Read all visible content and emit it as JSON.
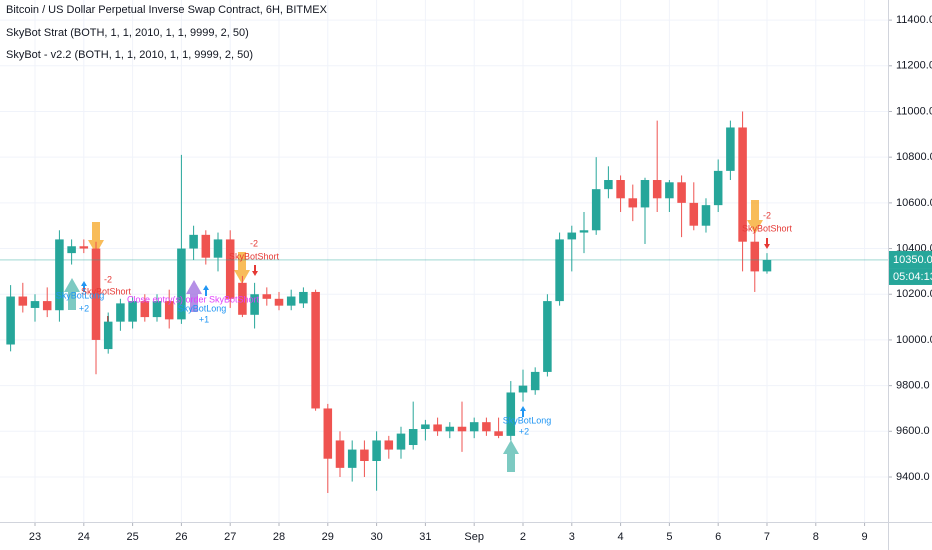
{
  "chart_data": {
    "type": "candlestick",
    "title": "Bitcoin / US Dollar Perpetual Inverse Swap Contract, 6H, BITMEX",
    "subtitles": [
      "SkyBot Strat (BOTH, 1, 1, 2010, 1, 1, 9999, 2, 50)",
      "SkyBot - v2.2 (BOTH, 1, 1, 2010, 1, 1, 9999, 2, 50)"
    ],
    "up_color": "#26a69a",
    "down_color": "#ef5350",
    "open": [
      9980,
      10190,
      10140,
      10170,
      10130,
      10380,
      10410,
      10400,
      9960,
      10080,
      10080,
      10170,
      10100,
      10170,
      10090,
      10400,
      10460,
      10360,
      10440,
      10250,
      10110,
      10200,
      10180,
      10150,
      10160,
      10210,
      9700,
      9560,
      9440,
      9520,
      9470,
      9560,
      9520,
      9540,
      9610,
      9630,
      9600,
      9620,
      9600,
      9640,
      9600,
      9580,
      9770,
      9780,
      9860,
      10170,
      10440,
      10470,
      10480,
      10660,
      10700,
      10620,
      10580,
      10700,
      10620,
      10690,
      10600,
      10500,
      10590,
      10740,
      10930,
      10430,
      10300
    ],
    "high": [
      10240,
      10250,
      10200,
      10230,
      10480,
      10440,
      10440,
      10430,
      10120,
      10180,
      10190,
      10200,
      10200,
      10220,
      10810,
      10500,
      10480,
      10470,
      10480,
      10280,
      10250,
      10230,
      10210,
      10220,
      10230,
      10220,
      9720,
      9600,
      9560,
      9560,
      9600,
      9580,
      9620,
      9730,
      9650,
      9660,
      9640,
      9730,
      9660,
      9660,
      9660,
      9820,
      9870,
      9880,
      10200,
      10470,
      10500,
      10560,
      10800,
      10760,
      10720,
      10680,
      10710,
      10960,
      10700,
      10720,
      10690,
      10620,
      10790,
      10960,
      11000,
      10480,
      10380
    ],
    "low": [
      9950,
      10120,
      10080,
      10100,
      10080,
      10330,
      10380,
      9850,
      9940,
      10040,
      10050,
      10080,
      10080,
      10050,
      10070,
      10350,
      10330,
      10300,
      10140,
      10100,
      10050,
      10150,
      10130,
      10130,
      10140,
      9690,
      9330,
      9400,
      9380,
      9400,
      9340,
      9480,
      9480,
      9520,
      9560,
      9580,
      9570,
      9510,
      9570,
      9580,
      9570,
      9560,
      9730,
      9760,
      9840,
      10150,
      10300,
      10380,
      10460,
      10620,
      10560,
      10520,
      10420,
      10560,
      10560,
      10450,
      10480,
      10470,
      10560,
      10700,
      10300,
      10210,
      10290
    ],
    "close": [
      10190,
      10150,
      10170,
      10130,
      10440,
      10410,
      10400,
      10000,
      10080,
      10160,
      10170,
      10100,
      10170,
      10090,
      10400,
      10460,
      10360,
      10440,
      10180,
      10110,
      10200,
      10180,
      10150,
      10190,
      10210,
      9700,
      9480,
      9440,
      9520,
      9470,
      9560,
      9520,
      9590,
      9610,
      9630,
      9600,
      9620,
      9600,
      9640,
      9600,
      9580,
      9770,
      9800,
      9860,
      10170,
      10440,
      10470,
      10480,
      10660,
      10700,
      10620,
      10580,
      10700,
      10620,
      10690,
      10600,
      10500,
      10590,
      10740,
      10930,
      10430,
      10300,
      10350
    ],
    "xlim": [
      -0.87,
      71.92
    ],
    "xticks": [
      {
        "value": 2,
        "label": "23"
      },
      {
        "value": 6,
        "label": "24"
      },
      {
        "value": 10,
        "label": "25"
      },
      {
        "value": 14,
        "label": "26"
      },
      {
        "value": 18,
        "label": "27"
      },
      {
        "value": 22,
        "label": "28"
      },
      {
        "value": 26,
        "label": "29"
      },
      {
        "value": 30,
        "label": "30"
      },
      {
        "value": 34,
        "label": "31"
      },
      {
        "value": 38,
        "label": "Sep"
      },
      {
        "value": 42,
        "label": "2"
      },
      {
        "value": 46,
        "label": "3"
      },
      {
        "value": 50,
        "label": "4"
      },
      {
        "value": 54,
        "label": "5"
      },
      {
        "value": 58,
        "label": "6"
      },
      {
        "value": 62,
        "label": "7"
      },
      {
        "value": 66,
        "label": "8"
      },
      {
        "value": 70,
        "label": "9"
      }
    ],
    "ylim": [
      9203,
      11488
    ],
    "yticks": [
      {
        "value": 9400,
        "label": "9400.0"
      },
      {
        "value": 9600,
        "label": "9600.0"
      },
      {
        "value": 9800,
        "label": "9800.0"
      },
      {
        "value": 10000,
        "label": "10000.0"
      },
      {
        "value": 10200,
        "label": "10200.0"
      },
      {
        "value": 10400,
        "label": "10400.0"
      },
      {
        "value": 10600,
        "label": "10600.0"
      },
      {
        "value": 10800,
        "label": "10800.0"
      },
      {
        "value": 11000,
        "label": "11000.0"
      },
      {
        "value": 11200,
        "label": "11200.0"
      },
      {
        "value": 11400,
        "label": "11400.0"
      }
    ],
    "grid": true,
    "last_price": {
      "value": 10350,
      "label": "10350.0"
    },
    "countdown": "05:04:13",
    "annotations": [
      {
        "text": "-2",
        "color": "#e53935"
      },
      {
        "text": "SkyBotShort",
        "color": "#e53935"
      },
      {
        "text": "SkyBotLong",
        "color": "#2196f3"
      },
      {
        "text": "+2",
        "color": "#2196f3"
      },
      {
        "text": "Close entry(s) order SkyBotShort",
        "color": "#e040fb"
      },
      {
        "text": "SkyBotLong",
        "color": "#2196f3"
      },
      {
        "text": "+1",
        "color": "#2196f3"
      },
      {
        "text": "-2",
        "color": "#e53935"
      },
      {
        "text": "SkyBotShort",
        "color": "#e53935"
      },
      {
        "text": "SkyBotLong",
        "color": "#2196f3"
      },
      {
        "text": "+2",
        "color": "#2196f3"
      },
      {
        "text": "-2",
        "color": "#e53935"
      },
      {
        "text": "SkyBotShort",
        "color": "#e53935"
      }
    ]
  }
}
